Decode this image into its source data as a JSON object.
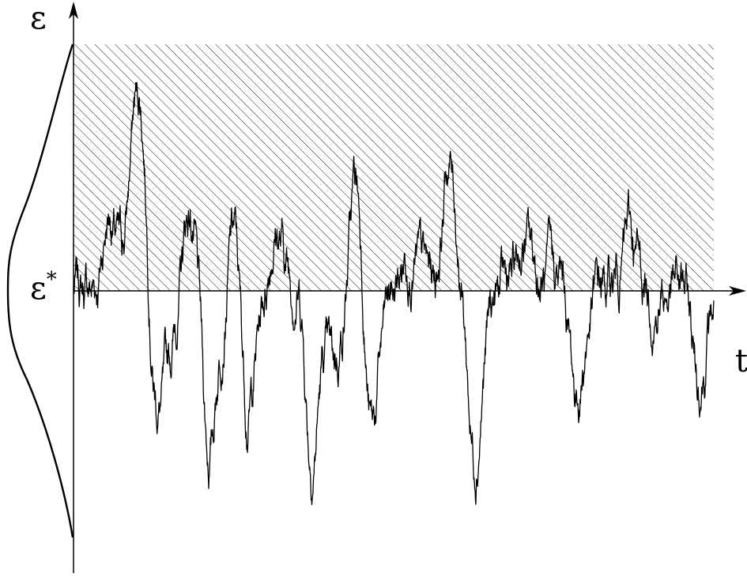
{
  "labels": {
    "y_axis": "ε",
    "threshold": "ε",
    "threshold_superscript": "*",
    "x_axis": "t"
  },
  "colors": {
    "stroke": "#000000",
    "hatch": "#000000",
    "background": "#ffffff"
  },
  "signal": {
    "kind": "rough-random-walk fluctuating about the threshold level ε*",
    "seed": 7,
    "peaks": [
      {
        "t": 0.05,
        "v": 0.45
      },
      {
        "t": 0.09,
        "v": 0.8
      },
      {
        "t": 0.105,
        "v": 0.6
      },
      {
        "t": 0.12,
        "v": -0.68
      },
      {
        "t": 0.14,
        "v": -0.35
      },
      {
        "t": 0.175,
        "v": 0.43
      },
      {
        "t": 0.205,
        "v": -0.92
      },
      {
        "t": 0.245,
        "v": 0.42
      },
      {
        "t": 0.265,
        "v": -0.7
      },
      {
        "t": 0.31,
        "v": 0.4
      },
      {
        "t": 0.355,
        "v": 0.27
      },
      {
        "t": 0.365,
        "v": -1.0
      },
      {
        "t": 0.4,
        "v": -0.4
      },
      {
        "t": 0.435,
        "v": 0.58
      },
      {
        "t": 0.46,
        "v": -0.8
      },
      {
        "t": 0.52,
        "v": 0.28
      },
      {
        "t": 0.58,
        "v": 0.7
      },
      {
        "t": 0.62,
        "v": -0.85
      },
      {
        "t": 0.7,
        "v": 0.25
      },
      {
        "t": 0.78,
        "v": -0.55
      },
      {
        "t": 0.86,
        "v": 0.3
      },
      {
        "t": 0.97,
        "v": -0.45
      }
    ]
  }
}
